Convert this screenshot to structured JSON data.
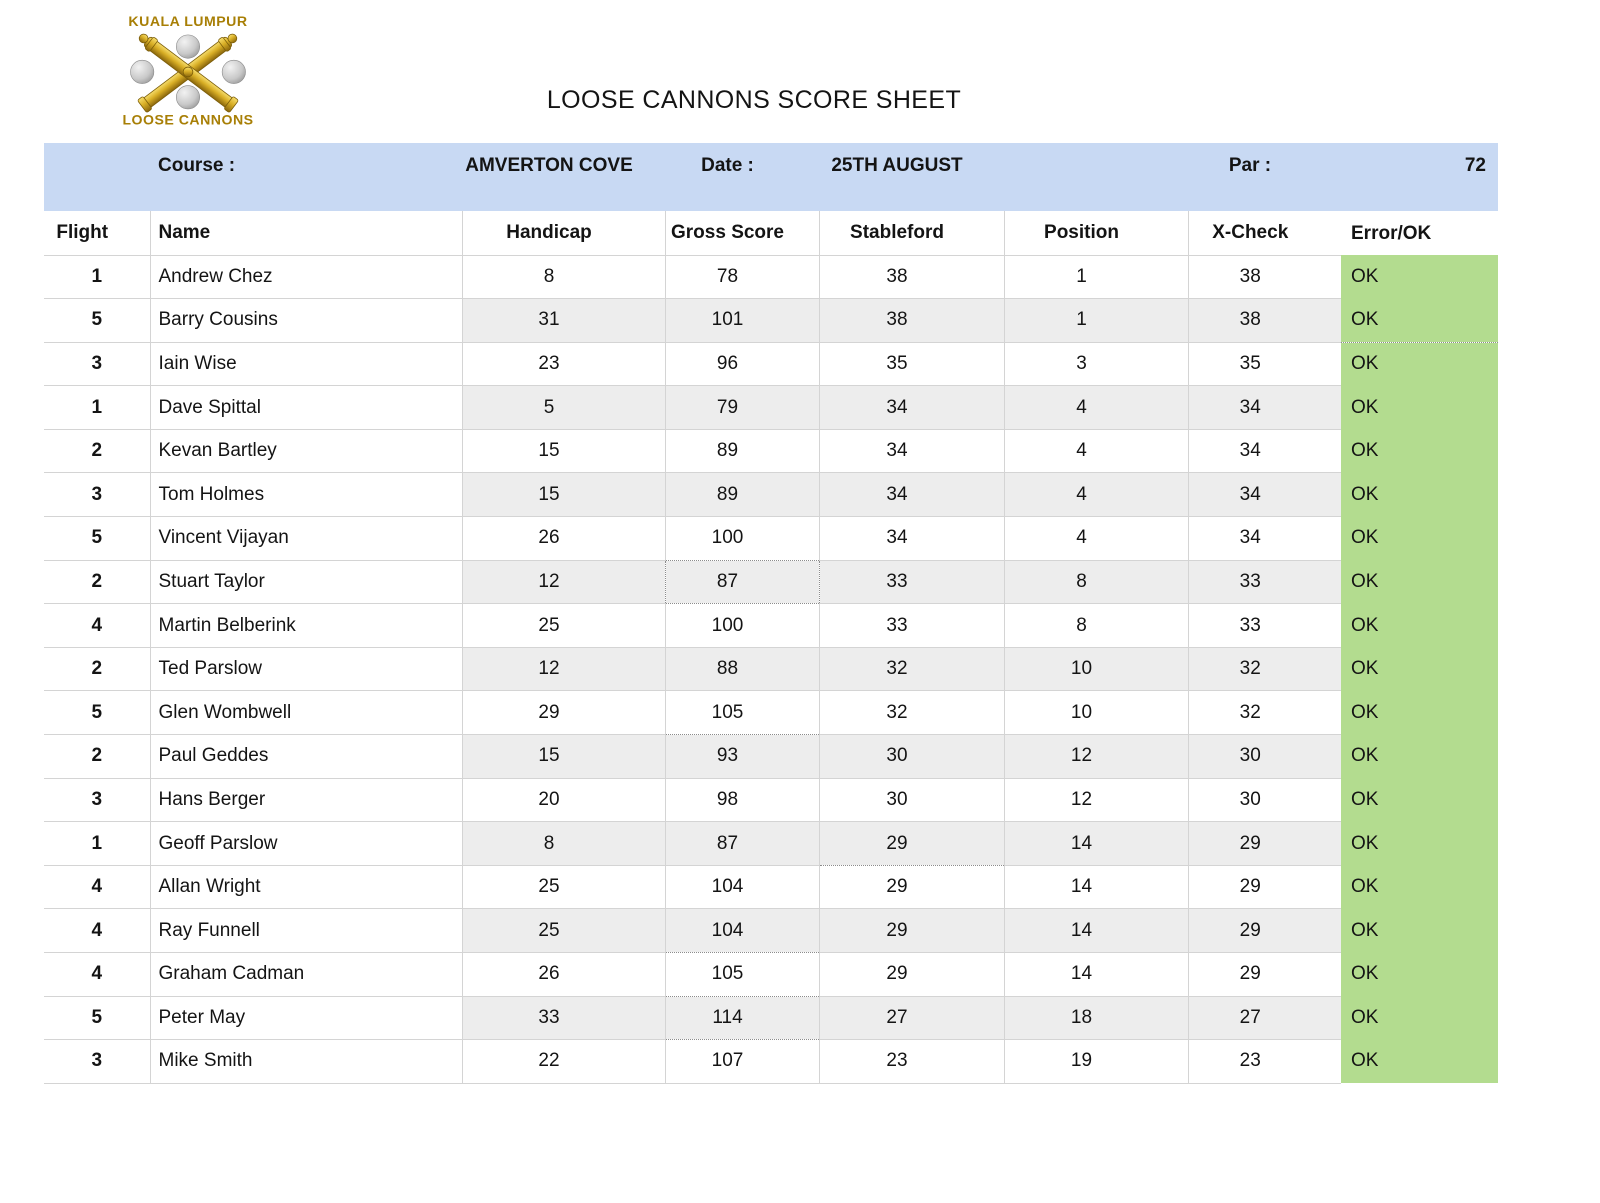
{
  "page": {
    "title": "LOOSE CANNONS SCORE SHEET"
  },
  "logo": {
    "top_text": "KUALA LUMPUR",
    "bottom_text": "LOOSE CANNONS"
  },
  "info_bar": {
    "course_label": "Course :",
    "course_value": "AMVERTON COVE",
    "date_label": "Date :",
    "date_value": "25TH AUGUST",
    "par_label": "Par :",
    "par_value": "72"
  },
  "table": {
    "headers": [
      "Flight",
      "Name",
      "Handicap",
      "Gross Score",
      "Stableford",
      "Position",
      "X-Check",
      "Error/OK"
    ],
    "rows": [
      {
        "flight": "1",
        "name": "Andrew Chez",
        "handicap": "8",
        "gross": "78",
        "stableford": "38",
        "position": "1",
        "xcheck": "38",
        "status": "OK"
      },
      {
        "flight": "5",
        "name": "Barry Cousins",
        "handicap": "31",
        "gross": "101",
        "stableford": "38",
        "position": "1",
        "xcheck": "38",
        "status": "OK"
      },
      {
        "flight": "3",
        "name": "Iain Wise",
        "handicap": "23",
        "gross": "96",
        "stableford": "35",
        "position": "3",
        "xcheck": "35",
        "status": "OK"
      },
      {
        "flight": "1",
        "name": "Dave Spittal",
        "handicap": "5",
        "gross": "79",
        "stableford": "34",
        "position": "4",
        "xcheck": "34",
        "status": "OK"
      },
      {
        "flight": "2",
        "name": "Kevan Bartley",
        "handicap": "15",
        "gross": "89",
        "stableford": "34",
        "position": "4",
        "xcheck": "34",
        "status": "OK"
      },
      {
        "flight": "3",
        "name": "Tom Holmes",
        "handicap": "15",
        "gross": "89",
        "stableford": "34",
        "position": "4",
        "xcheck": "34",
        "status": "OK"
      },
      {
        "flight": "5",
        "name": "Vincent Vijayan",
        "handicap": "26",
        "gross": "100",
        "stableford": "34",
        "position": "4",
        "xcheck": "34",
        "status": "OK"
      },
      {
        "flight": "2",
        "name": "Stuart Taylor",
        "handicap": "12",
        "gross": "87",
        "stableford": "33",
        "position": "8",
        "xcheck": "33",
        "status": "OK"
      },
      {
        "flight": "4",
        "name": "Martin Belberink",
        "handicap": "25",
        "gross": "100",
        "stableford": "33",
        "position": "8",
        "xcheck": "33",
        "status": "OK"
      },
      {
        "flight": "2",
        "name": "Ted Parslow",
        "handicap": "12",
        "gross": "88",
        "stableford": "32",
        "position": "10",
        "xcheck": "32",
        "status": "OK"
      },
      {
        "flight": "5",
        "name": "Glen Wombwell",
        "handicap": "29",
        "gross": "105",
        "stableford": "32",
        "position": "10",
        "xcheck": "32",
        "status": "OK"
      },
      {
        "flight": "2",
        "name": "Paul Geddes",
        "handicap": "15",
        "gross": "93",
        "stableford": "30",
        "position": "12",
        "xcheck": "30",
        "status": "OK"
      },
      {
        "flight": "3",
        "name": "Hans Berger",
        "handicap": "20",
        "gross": "98",
        "stableford": "30",
        "position": "12",
        "xcheck": "30",
        "status": "OK"
      },
      {
        "flight": "1",
        "name": "Geoff Parslow",
        "handicap": "8",
        "gross": "87",
        "stableford": "29",
        "position": "14",
        "xcheck": "29",
        "status": "OK"
      },
      {
        "flight": "4",
        "name": "Allan Wright",
        "handicap": "25",
        "gross": "104",
        "stableford": "29",
        "position": "14",
        "xcheck": "29",
        "status": "OK"
      },
      {
        "flight": "4",
        "name": "Ray Funnell",
        "handicap": "25",
        "gross": "104",
        "stableford": "29",
        "position": "14",
        "xcheck": "29",
        "status": "OK"
      },
      {
        "flight": "4",
        "name": "Graham Cadman",
        "handicap": "26",
        "gross": "105",
        "stableford": "29",
        "position": "14",
        "xcheck": "29",
        "status": "OK"
      },
      {
        "flight": "5",
        "name": "Peter May",
        "handicap": "33",
        "gross": "114",
        "stableford": "27",
        "position": "18",
        "xcheck": "27",
        "status": "OK"
      },
      {
        "flight": "3",
        "name": "Mike Smith",
        "handicap": "22",
        "gross": "107",
        "stableford": "23",
        "position": "19",
        "xcheck": "23",
        "status": "OK"
      }
    ],
    "colors": {
      "info_bar_blue": "#c8d9f3",
      "ok_green": "#b3dc8f",
      "stripe_gray": "#ededed",
      "grid_gray": "#d4d4d4",
      "logo_gold": "#a87f06"
    }
  }
}
